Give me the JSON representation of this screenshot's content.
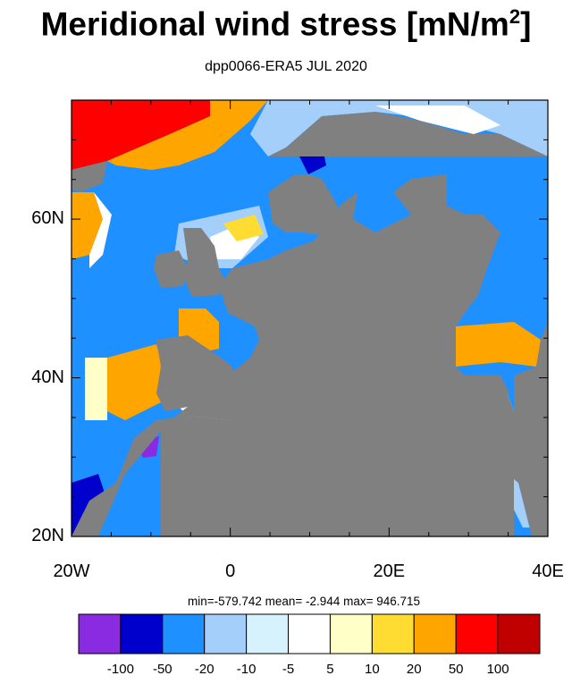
{
  "title": "Meridional wind stress [mN/m",
  "title_sup": "2",
  "title_close": "]",
  "subtitle": "dpp0066-ERA5  JUL 2020",
  "stats": {
    "text": "min=-579.742  mean=  -2.944  max= 946.715",
    "min": -579.742,
    "mean": -2.944,
    "max": 946.715
  },
  "map": {
    "lon_range": [
      -20,
      40
    ],
    "lat_range": [
      20,
      75
    ],
    "land_color": "#808080",
    "x_ticks": [
      {
        "value": -20,
        "label": "20W"
      },
      {
        "value": 0,
        "label": "0"
      },
      {
        "value": 20,
        "label": "20E"
      },
      {
        "value": 40,
        "label": "40E"
      }
    ],
    "y_ticks": [
      {
        "value": 20,
        "label": "20N"
      },
      {
        "value": 40,
        "label": "40N"
      },
      {
        "value": 60,
        "label": "60N"
      }
    ]
  },
  "colorbar": {
    "colors": [
      "#8a2be2",
      "#0000cd",
      "#1e90ff",
      "#a3cffa",
      "#d6f2fd",
      "#ffffff",
      "#ffffc8",
      "#fedc32",
      "#ffa500",
      "#ff0000",
      "#c00000"
    ],
    "labels": [
      "-100",
      "-50",
      "-20",
      "-10",
      "-5",
      "5",
      "10",
      "20",
      "50",
      "100"
    ]
  }
}
